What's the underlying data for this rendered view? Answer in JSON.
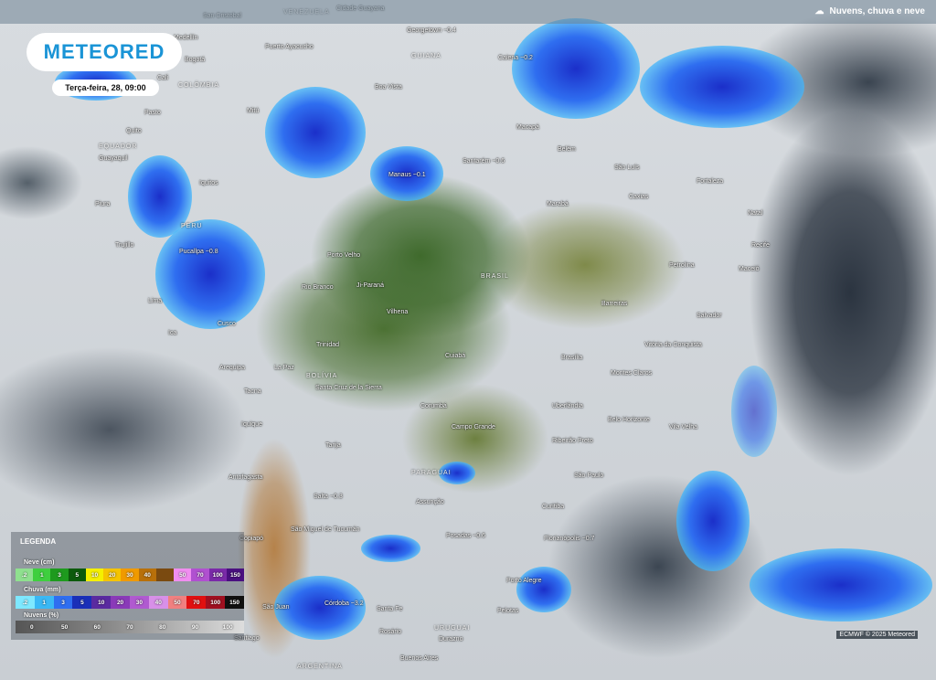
{
  "header": {
    "layer_label": "Nuvens, chuva e neve",
    "layer_icon": "cloud-rain-icon"
  },
  "logo": {
    "text": "METEORED"
  },
  "timestamp": "Terça-feira, 28, 09:00",
  "cities": [
    {
      "name": "San Cristobal"
    },
    {
      "name": "Cidade Guayana"
    },
    {
      "name": "Georgetown\n~0.4"
    },
    {
      "name": "Caiena\n~0.2"
    },
    {
      "name": "Puerto Ayacucho"
    },
    {
      "name": "Medellín"
    },
    {
      "name": "Bogotá"
    },
    {
      "name": "Cali"
    },
    {
      "name": "Boa Vista"
    },
    {
      "name": "Mitú"
    },
    {
      "name": "Macapá"
    },
    {
      "name": "Belém"
    },
    {
      "name": "São Luís"
    },
    {
      "name": "Fortaleza"
    },
    {
      "name": "Pasto"
    },
    {
      "name": "Quito"
    },
    {
      "name": "Guayaquil"
    },
    {
      "name": "Manaus ~0.1"
    },
    {
      "name": "Santarém ~0.6"
    },
    {
      "name": "Iquitos"
    },
    {
      "name": "Marabá"
    },
    {
      "name": "Caxias"
    },
    {
      "name": "Natal"
    },
    {
      "name": "Piura"
    },
    {
      "name": "Recife"
    },
    {
      "name": "Trujillo"
    },
    {
      "name": "Pucallpa ~0.8"
    },
    {
      "name": "Porto Velho"
    },
    {
      "name": "Petrolina"
    },
    {
      "name": "Maceió"
    },
    {
      "name": "Lima"
    },
    {
      "name": "Rio Branco"
    },
    {
      "name": "Ji-Paraná"
    },
    {
      "name": "Barreiras"
    },
    {
      "name": "Salvador"
    },
    {
      "name": "Vilhena"
    },
    {
      "name": "Cusco"
    },
    {
      "name": "Ica"
    },
    {
      "name": "Trinidad"
    },
    {
      "name": "Cuiabá"
    },
    {
      "name": "Brasília"
    },
    {
      "name": "Vitória da Conquista"
    },
    {
      "name": "Arequipa"
    },
    {
      "name": "La Paz"
    },
    {
      "name": "Montes Claros"
    },
    {
      "name": "Santa Cruz de la Sierra"
    },
    {
      "name": "Tacna"
    },
    {
      "name": "Corumbá"
    },
    {
      "name": "Uberlândia"
    },
    {
      "name": "Belo Horizonte"
    },
    {
      "name": "Iquique"
    },
    {
      "name": "Campo Grande"
    },
    {
      "name": "Vila Velha"
    },
    {
      "name": "Ribeirão Preto"
    },
    {
      "name": "Tarija"
    },
    {
      "name": "Antofagasta"
    },
    {
      "name": "São Paulo"
    },
    {
      "name": "Salta ~0.3"
    },
    {
      "name": "Assunção"
    },
    {
      "name": "Curitiba"
    },
    {
      "name": "São Miguel de Tucumán"
    },
    {
      "name": "Copiapó"
    },
    {
      "name": "Posadas ~0.6"
    },
    {
      "name": "Florianópolis ~0.7"
    },
    {
      "name": "Porto Alegre"
    },
    {
      "name": "Córdoba ~3.2"
    },
    {
      "name": "São Juan"
    },
    {
      "name": "Santa Fe"
    },
    {
      "name": "Pelotas"
    },
    {
      "name": "Rosário"
    },
    {
      "name": "Santiago"
    },
    {
      "name": "Durazno"
    },
    {
      "name": "Buenos Aires"
    }
  ],
  "countries": [
    "Venezuela",
    "Guiana",
    "Colômbia",
    "Equador",
    "Peru",
    "Brasil",
    "Bolívia",
    "Paraguai",
    "Uruguai",
    "Argentina"
  ],
  "legend": {
    "title": "LEGENDA",
    "snow": {
      "label": "Neve (cm)",
      "steps": [
        {
          "v": ".2",
          "c": "#8fe08f"
        },
        {
          "v": "1",
          "c": "#3fcf3f"
        },
        {
          "v": "3",
          "c": "#1e9a1e"
        },
        {
          "v": "5",
          "c": "#0c5a0c"
        },
        {
          "v": "10",
          "c": "#f5f000"
        },
        {
          "v": "20",
          "c": "#f5c400"
        },
        {
          "v": "30",
          "c": "#f09a00"
        },
        {
          "v": "40",
          "c": "#b8700a"
        },
        {
          "v": "",
          "c": "#7a4a10"
        },
        {
          "v": "50",
          "c": "#f08ef0"
        },
        {
          "v": "70",
          "c": "#b050d0"
        },
        {
          "v": "100",
          "c": "#7a2aa8"
        },
        {
          "v": "150",
          "c": "#4a1080"
        }
      ]
    },
    "rain": {
      "label": "Chuva (mm)",
      "steps": [
        {
          "v": ".2",
          "c": "#7ee8ff"
        },
        {
          "v": "1",
          "c": "#3ab8f5"
        },
        {
          "v": "3",
          "c": "#2f6ef0"
        },
        {
          "v": "5",
          "c": "#1a2fb8"
        },
        {
          "v": "10",
          "c": "#5a2aa0"
        },
        {
          "v": "20",
          "c": "#8a3ab8"
        },
        {
          "v": "30",
          "c": "#b05ad0"
        },
        {
          "v": "40",
          "c": "#d890e8"
        },
        {
          "v": "50",
          "c": "#f08080"
        },
        {
          "v": "70",
          "c": "#e01010"
        },
        {
          "v": "100",
          "c": "#a01020"
        },
        {
          "v": "150",
          "c": "#101010"
        }
      ]
    },
    "cloud": {
      "label": "Nuvens (%)",
      "steps": [
        "0",
        "50",
        "60",
        "70",
        "80",
        "90",
        "100"
      ]
    }
  },
  "credit": "ECMWF © 2025 Meteored"
}
